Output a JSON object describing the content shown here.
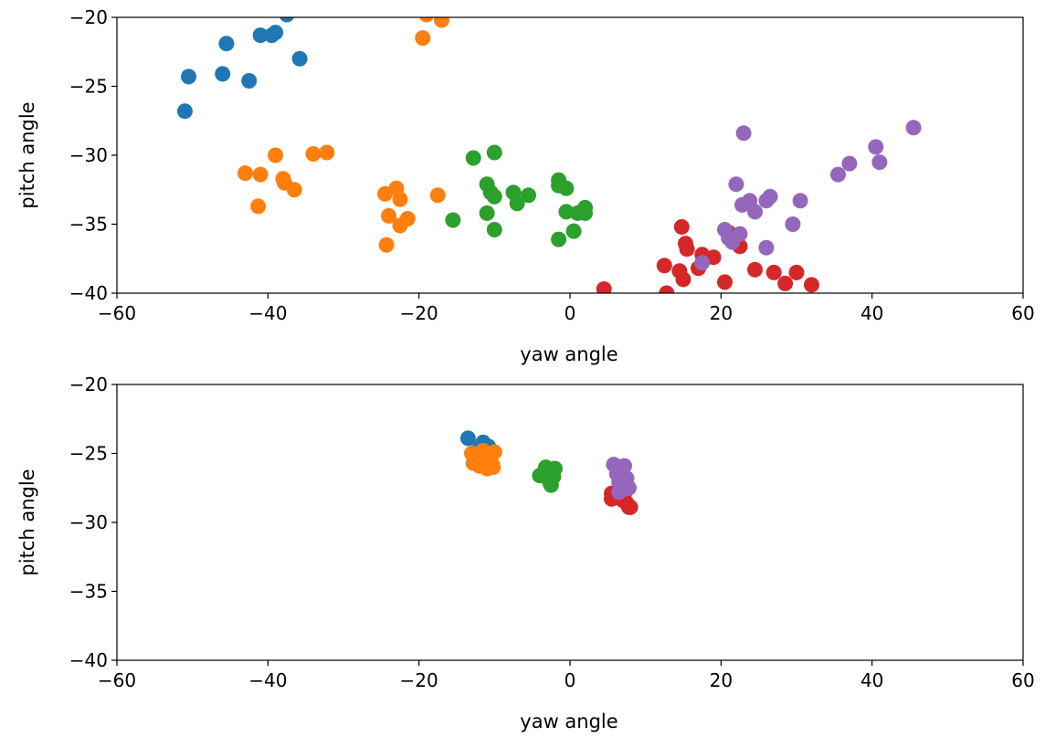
{
  "chart_data": [
    {
      "type": "scatter",
      "xlabel": "yaw angle",
      "ylabel": "pitch angle",
      "xlim": [
        -60,
        60
      ],
      "ylim": [
        -40,
        -20
      ],
      "xticks": [
        -60,
        -40,
        -20,
        0,
        20,
        40,
        60
      ],
      "yticks": [
        -40,
        -35,
        -30,
        -25,
        -20
      ],
      "xtick_labels": [
        "−60",
        "−40",
        "−20",
        "0",
        "20",
        "40",
        "60"
      ],
      "ytick_labels": [
        "−40",
        "−35",
        "−30",
        "−25",
        "−20"
      ],
      "grid": false,
      "series": [
        {
          "color": "#1f77b4",
          "points": [
            [
              -51,
              -26.8
            ],
            [
              -50.5,
              -24.3
            ],
            [
              -46,
              -24.1
            ],
            [
              -45.5,
              -21.9
            ],
            [
              -42.5,
              -24.6
            ],
            [
              -41,
              -21.3
            ],
            [
              -39.5,
              -21.3
            ],
            [
              -39,
              -21.1
            ],
            [
              -37.5,
              -19.8
            ],
            [
              -35.8,
              -23
            ]
          ]
        },
        {
          "color": "#ff7f0e",
          "points": [
            [
              -43,
              -31.3
            ],
            [
              -41,
              -31.4
            ],
            [
              -41.3,
              -33.7
            ],
            [
              -39,
              -30
            ],
            [
              -38,
              -31.7
            ],
            [
              -37.8,
              -32
            ],
            [
              -36.5,
              -32.5
            ],
            [
              -34,
              -29.9
            ],
            [
              -32.2,
              -29.8
            ],
            [
              -24.5,
              -32.8
            ],
            [
              -24,
              -34.4
            ],
            [
              -24.3,
              -36.5
            ],
            [
              -23,
              -32.4
            ],
            [
              -22.5,
              -33.2
            ],
            [
              -22.5,
              -35.1
            ],
            [
              -21.5,
              -34.6
            ],
            [
              -19.5,
              -21.5
            ],
            [
              -19,
              -19.8
            ],
            [
              -17.5,
              -32.9
            ],
            [
              -17,
              -20.2
            ]
          ]
        },
        {
          "color": "#2ca02c",
          "points": [
            [
              -15.5,
              -34.7
            ],
            [
              -12.8,
              -30.2
            ],
            [
              -11,
              -32.1
            ],
            [
              -11,
              -34.2
            ],
            [
              -10.5,
              -32.7
            ],
            [
              -10,
              -29.8
            ],
            [
              -10,
              -33
            ],
            [
              -10,
              -35.4
            ],
            [
              -7.5,
              -32.7
            ],
            [
              -7,
              -33.5
            ],
            [
              -5.5,
              -32.9
            ],
            [
              -1.5,
              -31.8
            ],
            [
              -1.5,
              -32.2
            ],
            [
              -1.5,
              -36.1
            ],
            [
              -0.5,
              -32.4
            ],
            [
              -0.5,
              -34.1
            ],
            [
              0.5,
              -35.5
            ],
            [
              1,
              -34.2
            ],
            [
              2,
              -33.8
            ],
            [
              2,
              -34.2
            ]
          ]
        },
        {
          "color": "#d62728",
          "points": [
            [
              4.5,
              -39.7
            ],
            [
              12.5,
              -38
            ],
            [
              12.8,
              -40
            ],
            [
              14.5,
              -38.4
            ],
            [
              14.8,
              -35.2
            ],
            [
              15,
              -39
            ],
            [
              15.3,
              -36.4
            ],
            [
              15.5,
              -36.8
            ],
            [
              17,
              -38.2
            ],
            [
              17.5,
              -37.2
            ],
            [
              19,
              -37.4
            ],
            [
              20.5,
              -39.2
            ],
            [
              21,
              -35.6
            ],
            [
              22.5,
              -36.6
            ],
            [
              24.5,
              -38.3
            ],
            [
              27,
              -38.5
            ],
            [
              28.5,
              -39.3
            ],
            [
              30,
              -38.5
            ],
            [
              32,
              -39.4
            ]
          ]
        },
        {
          "color": "#9467bd",
          "points": [
            [
              17.5,
              -37.8
            ],
            [
              20.5,
              -35.4
            ],
            [
              21,
              -36
            ],
            [
              21.5,
              -36.3
            ],
            [
              22,
              -32.1
            ],
            [
              22.5,
              -35.7
            ],
            [
              22.8,
              -33.6
            ],
            [
              23,
              -28.4
            ],
            [
              23.8,
              -33.3
            ],
            [
              24.5,
              -34.1
            ],
            [
              26,
              -33.3
            ],
            [
              26,
              -36.7
            ],
            [
              26.5,
              -33
            ],
            [
              29.5,
              -35
            ],
            [
              30.5,
              -33.3
            ],
            [
              35.5,
              -31.4
            ],
            [
              37,
              -30.6
            ],
            [
              40.5,
              -29.4
            ],
            [
              41,
              -30.5
            ],
            [
              45.5,
              -28
            ]
          ]
        }
      ]
    },
    {
      "type": "scatter",
      "xlabel": "yaw angle",
      "ylabel": "pitch angle",
      "xlim": [
        -60,
        60
      ],
      "ylim": [
        -40,
        -20
      ],
      "xticks": [
        -60,
        -40,
        -20,
        0,
        20,
        40,
        60
      ],
      "yticks": [
        -40,
        -35,
        -30,
        -25,
        -20
      ],
      "xtick_labels": [
        "−60",
        "−40",
        "−20",
        "0",
        "20",
        "40",
        "60"
      ],
      "ytick_labels": [
        "−40",
        "−35",
        "−30",
        "−25",
        "−20"
      ],
      "grid": false,
      "series": [
        {
          "color": "#1f77b4",
          "points": [
            [
              -13.5,
              -23.9
            ],
            [
              -11.5,
              -24.2
            ],
            [
              -12,
              -24.6
            ],
            [
              -10.8,
              -24.5
            ]
          ]
        },
        {
          "color": "#ff7f0e",
          "points": [
            [
              -13,
              -25
            ],
            [
              -12.8,
              -25.7
            ],
            [
              -12.5,
              -25.3
            ],
            [
              -12,
              -25.9
            ],
            [
              -11.8,
              -25
            ],
            [
              -11.5,
              -24.8
            ],
            [
              -11.2,
              -25.6
            ],
            [
              -11,
              -26.1
            ],
            [
              -10.8,
              -25.3
            ],
            [
              -10.5,
              -25
            ],
            [
              -10.3,
              -25.8
            ],
            [
              -10.2,
              -26
            ],
            [
              -10,
              -24.9
            ],
            [
              -12.2,
              -25.4
            ]
          ]
        },
        {
          "color": "#2ca02c",
          "points": [
            [
              -4,
              -26.6
            ],
            [
              -3.5,
              -26.4
            ],
            [
              -3.2,
              -26
            ],
            [
              -3,
              -26.5
            ],
            [
              -2.8,
              -26.9
            ],
            [
              -2.6,
              -27.2
            ],
            [
              -2.4,
              -26.3
            ],
            [
              -2.2,
              -26.7
            ],
            [
              -2,
              -26.1
            ],
            [
              -2.5,
              -27.3
            ]
          ]
        },
        {
          "color": "#d62728",
          "points": [
            [
              5.5,
              -27.9
            ],
            [
              5.5,
              -28.3
            ],
            [
              6,
              -28.2
            ],
            [
              6.2,
              -27.8
            ],
            [
              6.5,
              -28.1
            ],
            [
              7,
              -28.4
            ],
            [
              7.2,
              -27.9
            ],
            [
              7.5,
              -28.6
            ],
            [
              7.8,
              -28.9
            ],
            [
              8,
              -28.9
            ],
            [
              6.8,
              -28
            ]
          ]
        },
        {
          "color": "#9467bd",
          "points": [
            [
              5.8,
              -25.8
            ],
            [
              6.2,
              -26.5
            ],
            [
              6.5,
              -27.1
            ],
            [
              6.8,
              -26.2
            ],
            [
              7,
              -27.6
            ],
            [
              7.2,
              -25.9
            ],
            [
              7.5,
              -26.8
            ],
            [
              7.3,
              -27.3
            ],
            [
              7.8,
              -27.5
            ],
            [
              6.5,
              -27.8
            ],
            [
              7,
              -26.5
            ]
          ]
        }
      ]
    }
  ]
}
